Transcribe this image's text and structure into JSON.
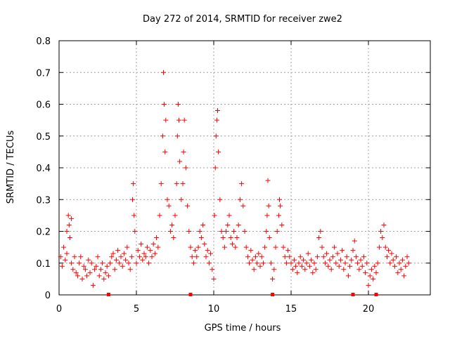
{
  "chart_data": {
    "type": "scatter",
    "title": "Day 272 of 2014, SRMTID for receiver zwe2",
    "xlabel": "GPS time / hours",
    "ylabel": "SRMTID / TECUs",
    "xlim": [
      0,
      24
    ],
    "ylim": [
      0,
      0.8
    ],
    "xticks": [
      0,
      5,
      10,
      15,
      20
    ],
    "yticks": [
      0,
      0.1,
      0.2,
      0.3,
      0.4,
      0.5,
      0.6,
      0.7,
      0.8
    ],
    "xtick_labels": [
      "0",
      "5",
      "10",
      "15",
      "20"
    ],
    "ytick_labels": [
      "0",
      "0.1",
      "0.2",
      "0.3",
      "0.4",
      "0.5",
      "0.6",
      "0.7",
      "0.8"
    ],
    "grid": true,
    "marker": "+",
    "color": "#ff0000",
    "series": [
      {
        "name": "SRMTID",
        "points": [
          [
            0.1,
            0.12
          ],
          [
            0.2,
            0.09
          ],
          [
            0.3,
            0.15
          ],
          [
            0.4,
            0.11
          ],
          [
            0.5,
            0.13
          ],
          [
            0.5,
            0.2
          ],
          [
            0.6,
            0.25
          ],
          [
            0.65,
            0.22
          ],
          [
            0.7,
            0.18
          ],
          [
            0.8,
            0.24
          ],
          [
            0.8,
            0.1
          ],
          [
            0.9,
            0.08
          ],
          [
            1.0,
            0.12
          ],
          [
            1.1,
            0.07
          ],
          [
            1.2,
            0.06
          ],
          [
            1.3,
            0.1
          ],
          [
            1.4,
            0.12
          ],
          [
            1.5,
            0.05
          ],
          [
            1.6,
            0.09
          ],
          [
            1.7,
            0.08
          ],
          [
            1.8,
            0.06
          ],
          [
            1.9,
            0.11
          ],
          [
            2.0,
            0.07
          ],
          [
            2.1,
            0.1
          ],
          [
            2.2,
            0.03
          ],
          [
            2.3,
            0.08
          ],
          [
            2.4,
            0.09
          ],
          [
            2.5,
            0.12
          ],
          [
            2.6,
            0.06
          ],
          [
            2.7,
            0.08
          ],
          [
            2.8,
            0.1
          ],
          [
            2.9,
            0.05
          ],
          [
            3.0,
            0.07
          ],
          [
            3.1,
            0.09
          ],
          [
            3.2,
            0.06
          ],
          [
            3.3,
            0.1
          ],
          [
            3.4,
            0.12
          ],
          [
            3.5,
            0.13
          ],
          [
            3.6,
            0.08
          ],
          [
            3.7,
            0.11
          ],
          [
            3.8,
            0.14
          ],
          [
            3.9,
            0.1
          ],
          [
            4.0,
            0.12
          ],
          [
            4.1,
            0.09
          ],
          [
            4.2,
            0.13
          ],
          [
            4.3,
            0.11
          ],
          [
            4.4,
            0.15
          ],
          [
            4.5,
            0.1
          ],
          [
            4.6,
            0.08
          ],
          [
            4.7,
            0.12
          ],
          [
            4.75,
            0.3
          ],
          [
            4.8,
            0.35
          ],
          [
            4.85,
            0.25
          ],
          [
            4.9,
            0.2
          ],
          [
            5.0,
            0.1
          ],
          [
            5.1,
            0.14
          ],
          [
            5.2,
            0.12
          ],
          [
            5.3,
            0.16
          ],
          [
            5.4,
            0.11
          ],
          [
            5.5,
            0.13
          ],
          [
            5.6,
            0.12
          ],
          [
            5.7,
            0.15
          ],
          [
            5.8,
            0.1
          ],
          [
            5.9,
            0.14
          ],
          [
            6.0,
            0.12
          ],
          [
            6.1,
            0.16
          ],
          [
            6.2,
            0.13
          ],
          [
            6.3,
            0.18
          ],
          [
            6.4,
            0.15
          ],
          [
            6.5,
            0.25
          ],
          [
            6.6,
            0.35
          ],
          [
            6.7,
            0.5
          ],
          [
            6.75,
            0.7
          ],
          [
            6.8,
            0.6
          ],
          [
            6.85,
            0.45
          ],
          [
            6.9,
            0.55
          ],
          [
            7.0,
            0.3
          ],
          [
            7.1,
            0.28
          ],
          [
            7.2,
            0.2
          ],
          [
            7.3,
            0.22
          ],
          [
            7.4,
            0.18
          ],
          [
            7.5,
            0.25
          ],
          [
            7.6,
            0.35
          ],
          [
            7.65,
            0.5
          ],
          [
            7.7,
            0.6
          ],
          [
            7.75,
            0.55
          ],
          [
            7.8,
            0.42
          ],
          [
            7.9,
            0.3
          ],
          [
            8.0,
            0.35
          ],
          [
            8.05,
            0.45
          ],
          [
            8.1,
            0.55
          ],
          [
            8.2,
            0.4
          ],
          [
            8.3,
            0.28
          ],
          [
            8.4,
            0.2
          ],
          [
            8.5,
            0.15
          ],
          [
            8.6,
            0.12
          ],
          [
            8.7,
            0.1
          ],
          [
            8.8,
            0.14
          ],
          [
            8.9,
            0.12
          ],
          [
            9.0,
            0.15
          ],
          [
            9.1,
            0.2
          ],
          [
            9.2,
            0.18
          ],
          [
            9.3,
            0.22
          ],
          [
            9.4,
            0.16
          ],
          [
            9.5,
            0.12
          ],
          [
            9.6,
            0.14
          ],
          [
            9.7,
            0.1
          ],
          [
            9.8,
            0.13
          ],
          [
            9.9,
            0.08
          ],
          [
            10.0,
            0.05
          ],
          [
            10.05,
            0.25
          ],
          [
            10.1,
            0.4
          ],
          [
            10.15,
            0.5
          ],
          [
            10.2,
            0.55
          ],
          [
            10.25,
            0.58
          ],
          [
            10.3,
            0.45
          ],
          [
            10.4,
            0.3
          ],
          [
            10.5,
            0.2
          ],
          [
            10.6,
            0.18
          ],
          [
            10.7,
            0.15
          ],
          [
            10.8,
            0.2
          ],
          [
            10.9,
            0.22
          ],
          [
            11.0,
            0.25
          ],
          [
            11.1,
            0.18
          ],
          [
            11.2,
            0.16
          ],
          [
            11.3,
            0.2
          ],
          [
            11.4,
            0.15
          ],
          [
            11.5,
            0.18
          ],
          [
            11.6,
            0.22
          ],
          [
            11.7,
            0.3
          ],
          [
            11.8,
            0.35
          ],
          [
            11.9,
            0.28
          ],
          [
            12.0,
            0.2
          ],
          [
            12.1,
            0.15
          ],
          [
            12.2,
            0.12
          ],
          [
            12.3,
            0.1
          ],
          [
            12.4,
            0.14
          ],
          [
            12.5,
            0.11
          ],
          [
            12.6,
            0.08
          ],
          [
            12.7,
            0.12
          ],
          [
            12.8,
            0.1
          ],
          [
            12.9,
            0.13
          ],
          [
            13.0,
            0.09
          ],
          [
            13.1,
            0.12
          ],
          [
            13.2,
            0.1
          ],
          [
            13.3,
            0.15
          ],
          [
            13.4,
            0.2
          ],
          [
            13.45,
            0.25
          ],
          [
            13.5,
            0.36
          ],
          [
            13.55,
            0.28
          ],
          [
            13.6,
            0.18
          ],
          [
            13.7,
            0.1
          ],
          [
            13.8,
            0.05
          ],
          [
            13.9,
            0.08
          ],
          [
            14.0,
            0.15
          ],
          [
            14.1,
            0.2
          ],
          [
            14.2,
            0.25
          ],
          [
            14.25,
            0.3
          ],
          [
            14.3,
            0.28
          ],
          [
            14.4,
            0.22
          ],
          [
            14.5,
            0.15
          ],
          [
            14.6,
            0.12
          ],
          [
            14.7,
            0.1
          ],
          [
            14.8,
            0.14
          ],
          [
            14.9,
            0.12
          ],
          [
            15.0,
            0.1
          ],
          [
            15.1,
            0.08
          ],
          [
            15.2,
            0.11
          ],
          [
            15.3,
            0.09
          ],
          [
            15.4,
            0.07
          ],
          [
            15.5,
            0.1
          ],
          [
            15.6,
            0.12
          ],
          [
            15.7,
            0.09
          ],
          [
            15.8,
            0.11
          ],
          [
            15.9,
            0.08
          ],
          [
            16.0,
            0.1
          ],
          [
            16.1,
            0.13
          ],
          [
            16.2,
            0.09
          ],
          [
            16.3,
            0.11
          ],
          [
            16.4,
            0.07
          ],
          [
            16.5,
            0.1
          ],
          [
            16.6,
            0.08
          ],
          [
            16.7,
            0.12
          ],
          [
            16.8,
            0.18
          ],
          [
            16.9,
            0.2
          ],
          [
            17.0,
            0.15
          ],
          [
            17.1,
            0.12
          ],
          [
            17.2,
            0.1
          ],
          [
            17.3,
            0.13
          ],
          [
            17.4,
            0.09
          ],
          [
            17.5,
            0.11
          ],
          [
            17.6,
            0.08
          ],
          [
            17.7,
            0.12
          ],
          [
            17.8,
            0.15
          ],
          [
            17.9,
            0.1
          ],
          [
            18.0,
            0.13
          ],
          [
            18.1,
            0.09
          ],
          [
            18.2,
            0.11
          ],
          [
            18.3,
            0.14
          ],
          [
            18.4,
            0.08
          ],
          [
            18.5,
            0.1
          ],
          [
            18.6,
            0.12
          ],
          [
            18.7,
            0.06
          ],
          [
            18.8,
            0.09
          ],
          [
            18.9,
            0.11
          ],
          [
            19.0,
            0.14
          ],
          [
            19.1,
            0.17
          ],
          [
            19.2,
            0.12
          ],
          [
            19.3,
            0.1
          ],
          [
            19.4,
            0.08
          ],
          [
            19.5,
            0.11
          ],
          [
            19.6,
            0.09
          ],
          [
            19.7,
            0.12
          ],
          [
            19.8,
            0.07
          ],
          [
            19.9,
            0.1
          ],
          [
            20.0,
            0.03
          ],
          [
            20.1,
            0.06
          ],
          [
            20.2,
            0.08
          ],
          [
            20.3,
            0.05
          ],
          [
            20.4,
            0.09
          ],
          [
            20.5,
            0.07
          ],
          [
            20.6,
            0.1
          ],
          [
            20.7,
            0.15
          ],
          [
            20.8,
            0.2
          ],
          [
            20.9,
            0.18
          ],
          [
            21.0,
            0.22
          ],
          [
            21.1,
            0.15
          ],
          [
            21.2,
            0.12
          ],
          [
            21.3,
            0.14
          ],
          [
            21.4,
            0.1
          ],
          [
            21.5,
            0.13
          ],
          [
            21.6,
            0.11
          ],
          [
            21.7,
            0.09
          ],
          [
            21.8,
            0.12
          ],
          [
            21.9,
            0.07
          ],
          [
            22.0,
            0.1
          ],
          [
            22.1,
            0.08
          ],
          [
            22.2,
            0.11
          ],
          [
            22.3,
            0.06
          ],
          [
            22.4,
            0.09
          ],
          [
            22.5,
            0.12
          ],
          [
            22.6,
            0.1
          ]
        ]
      }
    ],
    "zero_markers_x": [
      3.2,
      8.5,
      13.8,
      19.0,
      20.5
    ]
  }
}
